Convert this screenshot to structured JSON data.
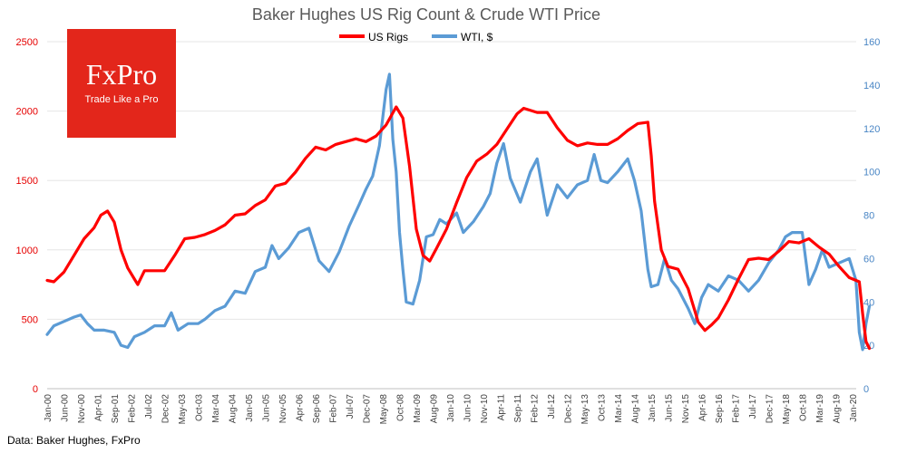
{
  "chart_data": {
    "type": "line",
    "title": "Baker Hughes US Rig Count & Crude WTI Price",
    "source": "Data: Baker Hughes, FxPro",
    "logo": {
      "brand": "FxPro",
      "tagline": "Trade Like a Pro"
    },
    "x_ticks": [
      "Jan-00",
      "Jun-00",
      "Nov-00",
      "Apr-01",
      "Sep-01",
      "Feb-02",
      "Jul-02",
      "Dec-02",
      "May-03",
      "Oct-03",
      "Mar-04",
      "Aug-04",
      "Jan-05",
      "Jun-05",
      "Nov-05",
      "Apr-06",
      "Sep-06",
      "Feb-07",
      "Jul-07",
      "Dec-07",
      "May-08",
      "Oct-08",
      "Mar-09",
      "Aug-09",
      "Jan-10",
      "Jun-10",
      "Nov-10",
      "Apr-11",
      "Sep-11",
      "Feb-12",
      "Jul-12",
      "Dec-12",
      "May-13",
      "Oct-13",
      "Mar-14",
      "Aug-14",
      "Jan-15",
      "Jun-15",
      "Nov-15",
      "Apr-16",
      "Sep-16",
      "Feb-17",
      "Jul-17",
      "Dec-17",
      "May-18",
      "Oct-18",
      "Mar-19",
      "Aug-19",
      "Jan-20"
    ],
    "y_left": {
      "ticks": [
        0,
        500,
        1000,
        1500,
        2000,
        2500
      ],
      "range": [
        0,
        2500
      ],
      "color": "#e60000"
    },
    "y_right": {
      "ticks": [
        0,
        20,
        40,
        60,
        80,
        100,
        120,
        140,
        160
      ],
      "range": [
        0,
        160
      ],
      "color": "#4a86c5"
    },
    "grid": "horizontal",
    "legend_position": "top",
    "series": [
      {
        "name": "US Rigs",
        "axis": "left",
        "color": "#ff0000",
        "points": [
          [
            "2000-01",
            780
          ],
          [
            "2000-03",
            770
          ],
          [
            "2000-06",
            840
          ],
          [
            "2000-09",
            960
          ],
          [
            "2000-12",
            1080
          ],
          [
            "2001-03",
            1160
          ],
          [
            "2001-05",
            1250
          ],
          [
            "2001-07",
            1280
          ],
          [
            "2001-09",
            1200
          ],
          [
            "2001-11",
            1000
          ],
          [
            "2002-01",
            870
          ],
          [
            "2002-03",
            790
          ],
          [
            "2002-04",
            750
          ],
          [
            "2002-06",
            850
          ],
          [
            "2002-09",
            850
          ],
          [
            "2002-12",
            850
          ],
          [
            "2003-03",
            960
          ],
          [
            "2003-06",
            1080
          ],
          [
            "2003-09",
            1090
          ],
          [
            "2003-12",
            1110
          ],
          [
            "2004-03",
            1140
          ],
          [
            "2004-06",
            1180
          ],
          [
            "2004-09",
            1250
          ],
          [
            "2004-12",
            1260
          ],
          [
            "2005-03",
            1320
          ],
          [
            "2005-06",
            1360
          ],
          [
            "2005-09",
            1460
          ],
          [
            "2005-12",
            1480
          ],
          [
            "2006-03",
            1560
          ],
          [
            "2006-06",
            1660
          ],
          [
            "2006-09",
            1740
          ],
          [
            "2006-12",
            1720
          ],
          [
            "2007-03",
            1760
          ],
          [
            "2007-06",
            1780
          ],
          [
            "2007-09",
            1800
          ],
          [
            "2007-12",
            1780
          ],
          [
            "2008-03",
            1820
          ],
          [
            "2008-06",
            1900
          ],
          [
            "2008-09",
            2030
          ],
          [
            "2008-11",
            1950
          ],
          [
            "2009-01",
            1600
          ],
          [
            "2009-03",
            1150
          ],
          [
            "2009-05",
            960
          ],
          [
            "2009-07",
            920
          ],
          [
            "2009-09",
            1010
          ],
          [
            "2009-12",
            1150
          ],
          [
            "2010-03",
            1340
          ],
          [
            "2010-06",
            1520
          ],
          [
            "2010-09",
            1640
          ],
          [
            "2010-12",
            1690
          ],
          [
            "2011-03",
            1760
          ],
          [
            "2011-06",
            1870
          ],
          [
            "2011-09",
            1980
          ],
          [
            "2011-11",
            2020
          ],
          [
            "2012-03",
            1990
          ],
          [
            "2012-06",
            1990
          ],
          [
            "2012-09",
            1880
          ],
          [
            "2012-12",
            1790
          ],
          [
            "2013-03",
            1750
          ],
          [
            "2013-06",
            1770
          ],
          [
            "2013-09",
            1760
          ],
          [
            "2013-12",
            1760
          ],
          [
            "2014-03",
            1800
          ],
          [
            "2014-06",
            1860
          ],
          [
            "2014-09",
            1910
          ],
          [
            "2014-12",
            1920
          ],
          [
            "2015-01",
            1680
          ],
          [
            "2015-02",
            1350
          ],
          [
            "2015-04",
            1000
          ],
          [
            "2015-06",
            880
          ],
          [
            "2015-09",
            860
          ],
          [
            "2015-12",
            720
          ],
          [
            "2016-03",
            480
          ],
          [
            "2016-05",
            420
          ],
          [
            "2016-07",
            460
          ],
          [
            "2016-09",
            510
          ],
          [
            "2016-12",
            640
          ],
          [
            "2017-03",
            790
          ],
          [
            "2017-06",
            930
          ],
          [
            "2017-09",
            940
          ],
          [
            "2017-12",
            930
          ],
          [
            "2018-03",
            990
          ],
          [
            "2018-06",
            1060
          ],
          [
            "2018-09",
            1050
          ],
          [
            "2018-12",
            1080
          ],
          [
            "2019-03",
            1020
          ],
          [
            "2019-06",
            970
          ],
          [
            "2019-09",
            880
          ],
          [
            "2019-12",
            800
          ],
          [
            "2020-03",
            770
          ],
          [
            "2020-04",
            540
          ],
          [
            "2020-05",
            340
          ],
          [
            "2020-06",
            290
          ]
        ]
      },
      {
        "name": "WTI, $",
        "axis": "right",
        "color": "#5b9bd5",
        "points": [
          [
            "2000-01",
            25
          ],
          [
            "2000-03",
            29
          ],
          [
            "2000-06",
            31
          ],
          [
            "2000-09",
            33
          ],
          [
            "2000-11",
            34
          ],
          [
            "2001-01",
            30
          ],
          [
            "2001-03",
            27
          ],
          [
            "2001-06",
            27
          ],
          [
            "2001-09",
            26
          ],
          [
            "2001-11",
            20
          ],
          [
            "2002-01",
            19
          ],
          [
            "2002-03",
            24
          ],
          [
            "2002-06",
            26
          ],
          [
            "2002-09",
            29
          ],
          [
            "2002-12",
            29
          ],
          [
            "2003-02",
            35
          ],
          [
            "2003-04",
            27
          ],
          [
            "2003-07",
            30
          ],
          [
            "2003-10",
            30
          ],
          [
            "2003-12",
            32
          ],
          [
            "2004-03",
            36
          ],
          [
            "2004-06",
            38
          ],
          [
            "2004-09",
            45
          ],
          [
            "2004-12",
            44
          ],
          [
            "2005-03",
            54
          ],
          [
            "2005-06",
            56
          ],
          [
            "2005-08",
            66
          ],
          [
            "2005-10",
            60
          ],
          [
            "2006-01",
            65
          ],
          [
            "2006-04",
            72
          ],
          [
            "2006-07",
            74
          ],
          [
            "2006-10",
            59
          ],
          [
            "2007-01",
            54
          ],
          [
            "2007-04",
            63
          ],
          [
            "2007-07",
            75
          ],
          [
            "2007-10",
            85
          ],
          [
            "2007-12",
            92
          ],
          [
            "2008-02",
            98
          ],
          [
            "2008-04",
            112
          ],
          [
            "2008-06",
            138
          ],
          [
            "2008-07",
            145
          ],
          [
            "2008-08",
            115
          ],
          [
            "2008-09",
            100
          ],
          [
            "2008-10",
            72
          ],
          [
            "2008-11",
            55
          ],
          [
            "2008-12",
            40
          ],
          [
            "2009-02",
            39
          ],
          [
            "2009-04",
            50
          ],
          [
            "2009-06",
            70
          ],
          [
            "2009-08",
            71
          ],
          [
            "2009-10",
            78
          ],
          [
            "2009-12",
            76
          ],
          [
            "2010-03",
            81
          ],
          [
            "2010-05",
            72
          ],
          [
            "2010-08",
            77
          ],
          [
            "2010-11",
            84
          ],
          [
            "2011-01",
            90
          ],
          [
            "2011-03",
            104
          ],
          [
            "2011-05",
            113
          ],
          [
            "2011-07",
            97
          ],
          [
            "2011-10",
            86
          ],
          [
            "2012-01",
            100
          ],
          [
            "2012-03",
            106
          ],
          [
            "2012-06",
            80
          ],
          [
            "2012-09",
            94
          ],
          [
            "2012-12",
            88
          ],
          [
            "2013-03",
            94
          ],
          [
            "2013-06",
            96
          ],
          [
            "2013-08",
            108
          ],
          [
            "2013-10",
            96
          ],
          [
            "2013-12",
            95
          ],
          [
            "2014-03",
            100
          ],
          [
            "2014-06",
            106
          ],
          [
            "2014-08",
            96
          ],
          [
            "2014-10",
            82
          ],
          [
            "2014-12",
            55
          ],
          [
            "2015-01",
            47
          ],
          [
            "2015-03",
            48
          ],
          [
            "2015-05",
            60
          ],
          [
            "2015-07",
            50
          ],
          [
            "2015-09",
            46
          ],
          [
            "2015-12",
            37
          ],
          [
            "2016-02",
            30
          ],
          [
            "2016-04",
            42
          ],
          [
            "2016-06",
            48
          ],
          [
            "2016-09",
            45
          ],
          [
            "2016-12",
            52
          ],
          [
            "2017-03",
            50
          ],
          [
            "2017-06",
            45
          ],
          [
            "2017-09",
            50
          ],
          [
            "2017-12",
            58
          ],
          [
            "2018-03",
            64
          ],
          [
            "2018-05",
            70
          ],
          [
            "2018-07",
            72
          ],
          [
            "2018-10",
            72
          ],
          [
            "2018-12",
            48
          ],
          [
            "2019-02",
            55
          ],
          [
            "2019-04",
            64
          ],
          [
            "2019-06",
            56
          ],
          [
            "2019-09",
            58
          ],
          [
            "2019-12",
            60
          ],
          [
            "2020-01",
            55
          ],
          [
            "2020-02",
            50
          ],
          [
            "2020-03",
            26
          ],
          [
            "2020-04",
            18
          ],
          [
            "2020-05",
            30
          ],
          [
            "2020-06",
            38
          ]
        ]
      }
    ]
  }
}
